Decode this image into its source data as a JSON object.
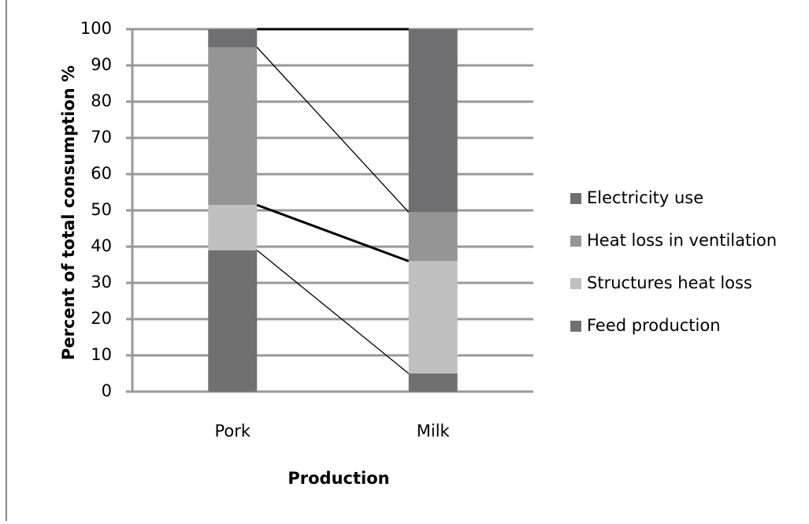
{
  "chart_data": {
    "type": "stacked_bar",
    "categories": [
      "Pork",
      "Milk"
    ],
    "series": [
      {
        "name": "Feed production",
        "color": "#707070",
        "values": [
          39,
          5
        ]
      },
      {
        "name": "Structures heat loss",
        "color": "#c0c0c0",
        "values": [
          12.5,
          31
        ]
      },
      {
        "name": "Heat loss in ventilation",
        "color": "#959595",
        "values": [
          43.5,
          13.5
        ]
      },
      {
        "name": "Electricity use",
        "color": "#6f6f72",
        "values": [
          5,
          50.5
        ]
      }
    ],
    "xlabel": "Production",
    "ylabel": "Percent of total consumption %",
    "ylim": [
      0,
      100
    ],
    "yticks": [
      0,
      10,
      20,
      30,
      40,
      50,
      60,
      70,
      80,
      90,
      100
    ],
    "grid": true,
    "legend": "right"
  }
}
